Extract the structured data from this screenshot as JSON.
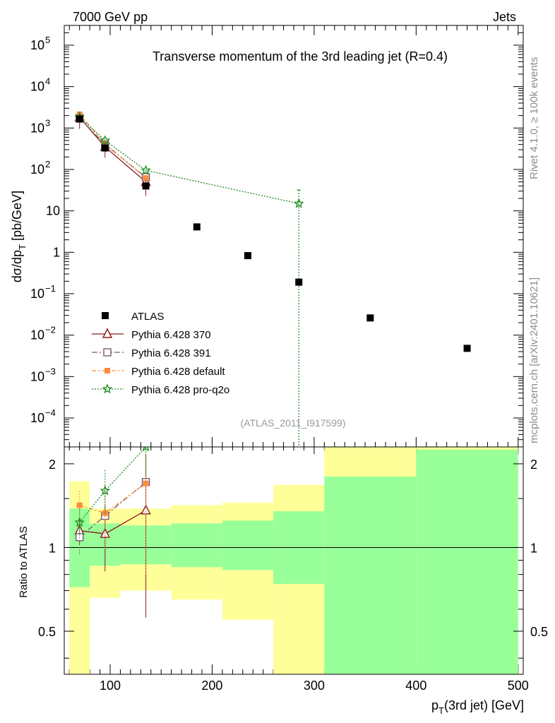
{
  "header": {
    "left": "7000 GeV pp",
    "right": "Jets"
  },
  "side": {
    "rivet": "Rivet 4.1.0, ≥ 100k events",
    "mcplots": "mcplots.cern.ch [arXiv:2401.10621]"
  },
  "chart_data": {
    "type": "scatter",
    "title": "Transverse momentum of the 3rd leading jet (R=0.4)",
    "analysis_tag": "(ATLAS_2011_I917599)",
    "xlabel": "p_T(3rd jet) [GeV]",
    "ylabel": "dσ/dp_T [pb/GeV]",
    "ratio_ylabel": "Ratio to ATLAS",
    "xlim": [
      55,
      505
    ],
    "ylim": [
      2e-05,
      300000
    ],
    "ratio_ylim": [
      0.35,
      2.3
    ],
    "x_ticks": [
      "100",
      "200",
      "300",
      "400",
      "500"
    ],
    "x_tick_values": [
      100,
      200,
      300,
      400,
      500
    ],
    "y_ticks": [
      {
        "value": 100000,
        "base": "10",
        "exp": "5"
      },
      {
        "value": 10000,
        "base": "10",
        "exp": "4"
      },
      {
        "value": 1000,
        "base": "10",
        "exp": "3"
      },
      {
        "value": 100,
        "base": "10",
        "exp": "2"
      },
      {
        "value": 10,
        "base": "10",
        "exp": ""
      },
      {
        "value": 1,
        "base": "1",
        "exp": ""
      },
      {
        "value": 0.1,
        "base": "10",
        "exp": "−1"
      },
      {
        "value": 0.01,
        "base": "10",
        "exp": "−2"
      },
      {
        "value": 0.001,
        "base": "10",
        "exp": "−3"
      },
      {
        "value": 0.0001,
        "base": "10",
        "exp": "−4"
      }
    ],
    "ratio_ticks": [
      "0.5",
      "1",
      "2"
    ],
    "ratio_tick_values": [
      0.5,
      1,
      2
    ],
    "data": {
      "name": "ATLAS",
      "x": [
        70,
        95,
        135,
        185,
        235,
        285,
        355,
        450
      ],
      "y": [
        1650,
        330,
        40,
        4.1,
        0.83,
        0.19,
        0.026,
        0.0048
      ],
      "bins": [
        [
          60,
          80
        ],
        [
          80,
          110
        ],
        [
          110,
          160
        ],
        [
          160,
          210
        ],
        [
          210,
          260
        ],
        [
          260,
          310
        ],
        [
          310,
          400
        ],
        [
          400,
          500
        ]
      ],
      "stat_band": [
        [
          0.72,
          1.38
        ],
        [
          0.86,
          1.22
        ],
        [
          0.87,
          1.2
        ],
        [
          0.85,
          1.22
        ],
        [
          0.83,
          1.25
        ],
        [
          0.74,
          1.35
        ],
        [
          0.35,
          1.8
        ],
        [
          0.35,
          2.25
        ]
      ],
      "total_band": [
        [
          0.35,
          1.73
        ],
        [
          0.66,
          1.38
        ],
        [
          0.7,
          1.38
        ],
        [
          0.65,
          1.42
        ],
        [
          0.55,
          1.45
        ],
        [
          0.35,
          1.68
        ],
        [
          0.35,
          2.3
        ],
        [
          0.35,
          2.3
        ]
      ]
    },
    "series": [
      {
        "name": "Pythia 6.428 370",
        "color": "#8b1a1a",
        "marker": "triangle-open",
        "dash": "",
        "x": [
          70,
          95,
          135
        ],
        "y": [
          1800,
          350,
          50
        ],
        "ratio": [
          1.15,
          1.12,
          1.36
        ],
        "ratio_err": [
          0.12,
          0.3,
          0.8
        ]
      },
      {
        "name": "Pythia 6.428 391",
        "color": "#7a5c6e",
        "marker": "square-open",
        "dash": "8,3,2,3",
        "x": [
          70,
          95,
          135
        ],
        "y": [
          1750,
          400,
          65
        ],
        "ratio": [
          1.09,
          1.3,
          1.72
        ],
        "ratio_err": [
          0.15,
          0.35,
          0.9
        ]
      },
      {
        "name": "Pythia 6.428 default",
        "color": "#ff8c3c",
        "marker": "square-filled",
        "dash": "6,3,2,3",
        "x": [
          70,
          95,
          135
        ],
        "y": [
          2150,
          420,
          62
        ],
        "ratio": [
          1.42,
          1.33,
          1.7
        ],
        "ratio_err": [
          0.18,
          0.35,
          0.9
        ]
      },
      {
        "name": "Pythia 6.428 pro-q2o",
        "color": "#1a8a1a",
        "marker": "star",
        "dash": "2,2",
        "x": [
          70,
          95,
          135,
          285
        ],
        "y": [
          1850,
          500,
          95,
          15
        ],
        "ratio": [
          1.23,
          1.6,
          2.3,
          null
        ],
        "ratio_err": [
          0.15,
          0.3,
          0.5,
          null
        ]
      }
    ]
  }
}
